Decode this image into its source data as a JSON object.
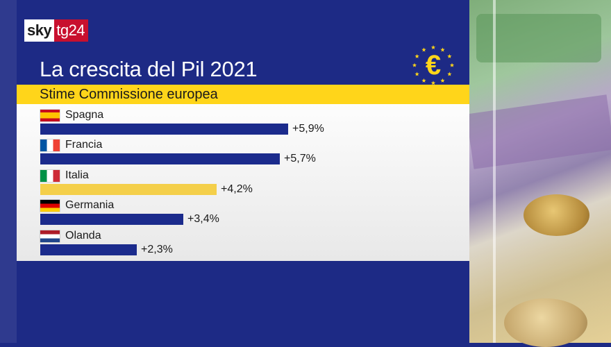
{
  "brand": {
    "sky": "sky",
    "tg": "tg24"
  },
  "colors": {
    "panel": "#1d2a85",
    "bar_default": "#1b2b8c",
    "bar_highlight": "#f4cf4a",
    "band": "#ffd51a",
    "logo_red": "#c8102e"
  },
  "badge_icon": "euro-stars-icon",
  "chart_data": {
    "type": "bar",
    "orientation": "horizontal",
    "title": "La crescita del Pil 2021",
    "subtitle": "Stime Commissione europea",
    "categories": [
      "Spagna",
      "Francia",
      "Italia",
      "Germania",
      "Olanda"
    ],
    "values": [
      5.9,
      5.7,
      4.2,
      3.4,
      2.3
    ],
    "value_labels": [
      "+5,9%",
      "+5,7%",
      "+4,2%",
      "+3,4%",
      "+2,3%"
    ],
    "flags": [
      "spain-flag-icon",
      "france-flag-icon",
      "italy-flag-icon",
      "germany-flag-icon",
      "netherlands-flag-icon"
    ],
    "highlight": "Italia",
    "xlim": [
      0,
      5.9
    ],
    "grid": false
  }
}
